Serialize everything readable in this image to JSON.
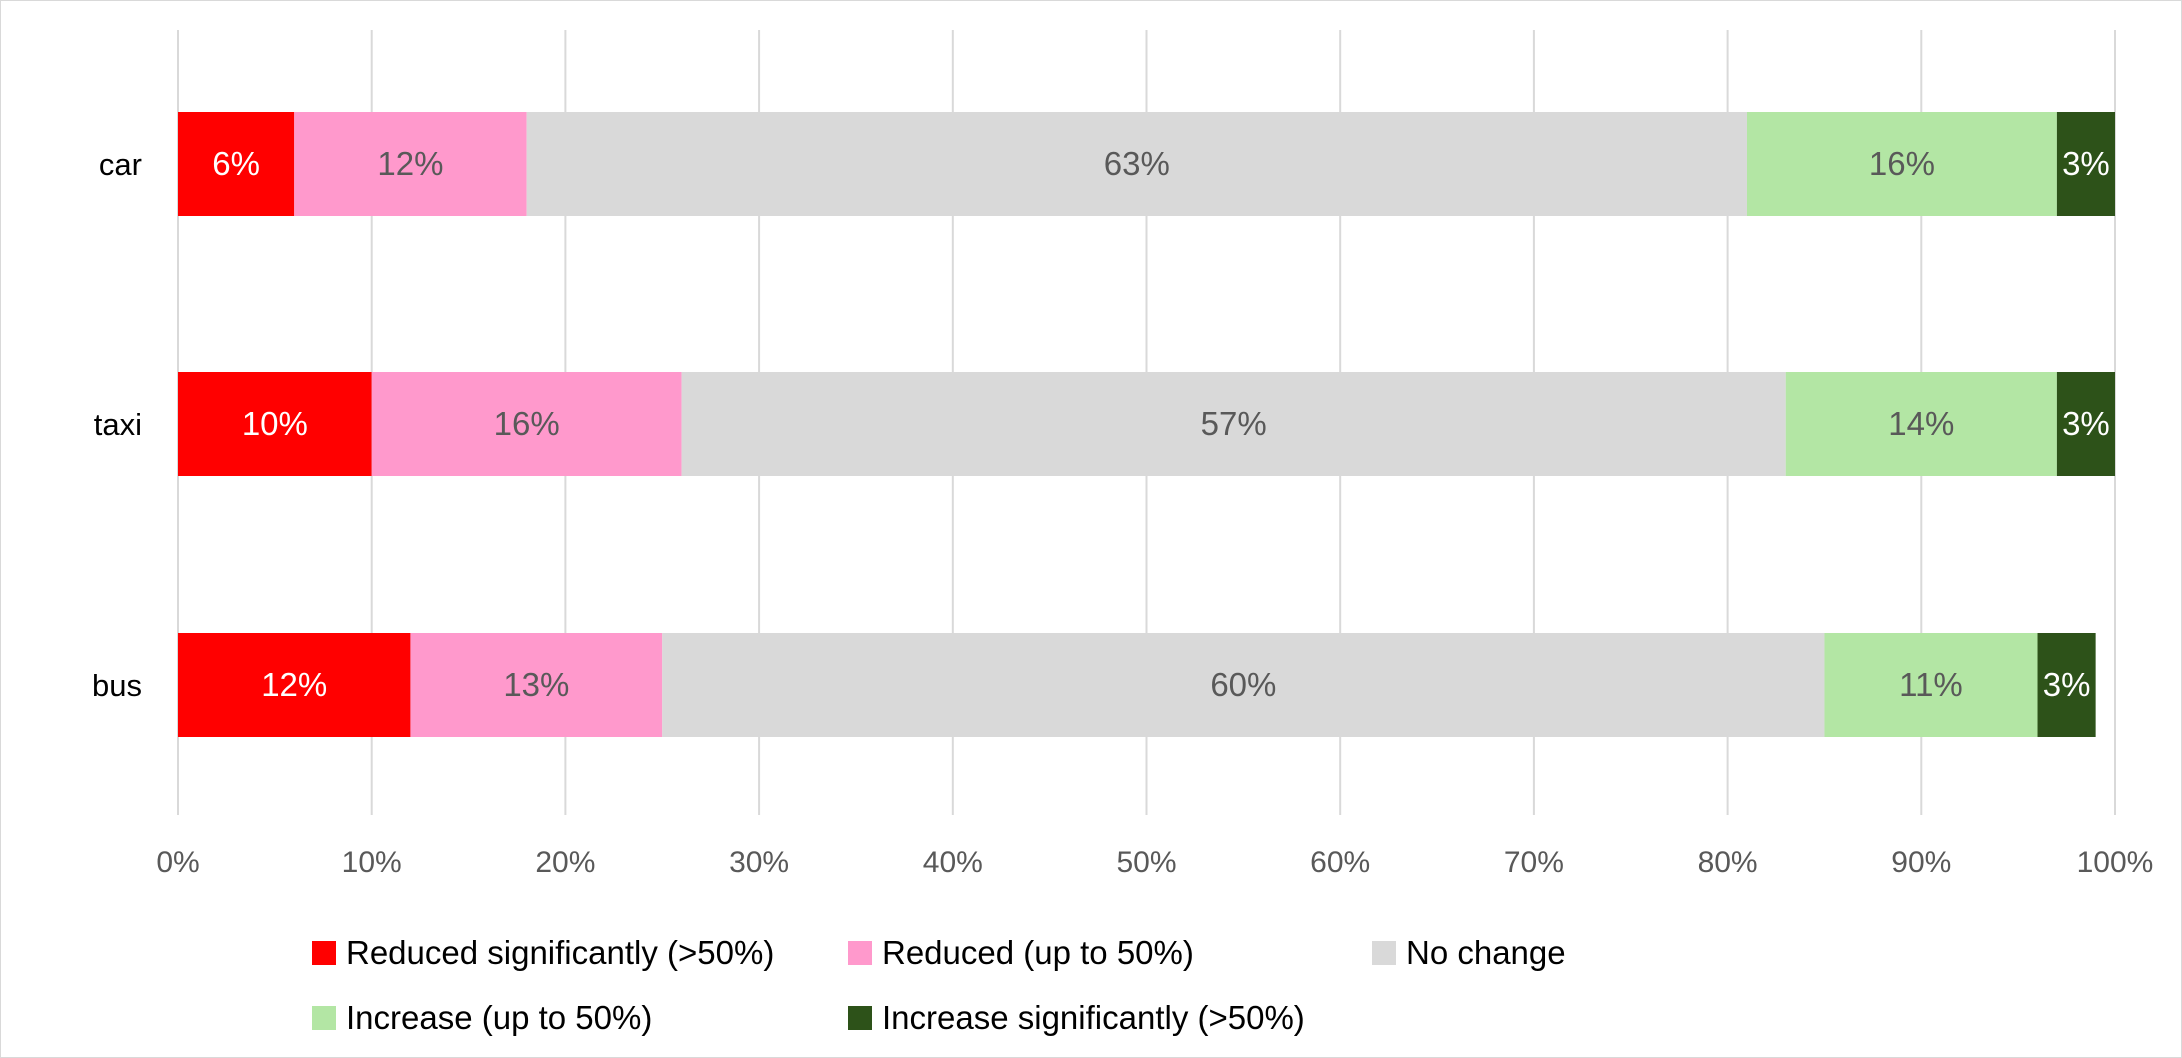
{
  "chart_data": {
    "type": "bar",
    "orientation": "horizontal",
    "stacked": "100%",
    "categories": [
      "car",
      "taxi",
      "bus"
    ],
    "series": [
      {
        "name": "Reduced significantly (>50%)",
        "color": "#ff0000",
        "label_color": "#ffffff",
        "values": [
          6,
          10,
          12
        ],
        "labels": [
          "6%",
          "10%",
          "12%"
        ]
      },
      {
        "name": "Reduced (up to 50%)",
        "color": "#ff99cc",
        "label_color": "#595959",
        "values": [
          12,
          16,
          13
        ],
        "labels": [
          "12%",
          "16%",
          "13%"
        ]
      },
      {
        "name": "No change",
        "color": "#d9d9d9",
        "label_color": "#595959",
        "values": [
          63,
          57,
          60
        ],
        "labels": [
          "63%",
          "57%",
          "60%"
        ]
      },
      {
        "name": "Increase (up to 50%)",
        "color": "#b3e6a4",
        "label_color": "#595959",
        "values": [
          16,
          14,
          11
        ],
        "labels": [
          "16%",
          "14%",
          "11%"
        ]
      },
      {
        "name": "Increase significantly (>50%)",
        "color": "#2d5219",
        "label_color": "#ffffff",
        "values": [
          3,
          3,
          3
        ],
        "labels": [
          "3%",
          "3%",
          "3%"
        ]
      }
    ],
    "xlim": [
      0,
      100
    ],
    "xticks": [
      "0%",
      "10%",
      "20%",
      "30%",
      "40%",
      "50%",
      "60%",
      "70%",
      "80%",
      "90%",
      "100%"
    ],
    "grid": "vertical",
    "legend_position": "bottom",
    "colors": {
      "grid": "#d9d9d9",
      "axis_text": "#595959",
      "category_text": "#000000",
      "legend_text": "#000000"
    }
  }
}
